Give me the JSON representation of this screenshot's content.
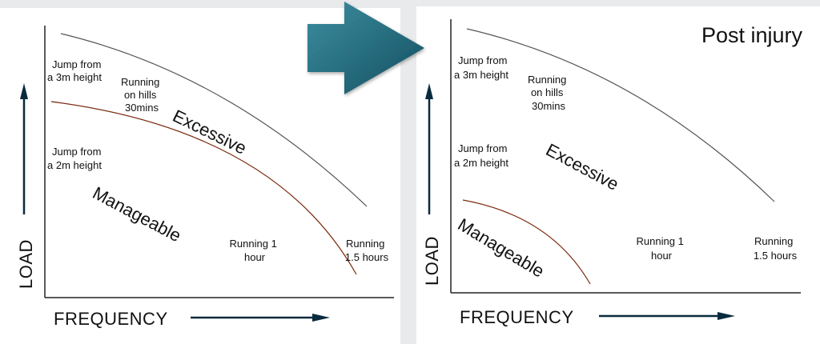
{
  "colors": {
    "upper_curve": "#555555",
    "lower_curve": "#7a2a0c",
    "axis": "#222222",
    "arrow_shape": "#1e6775",
    "arrow_head": "#0a2a3d"
  },
  "icons": {
    "transition": "right-arrow-icon",
    "axis_up": "arrow-up-icon",
    "axis_right": "arrow-right-icon"
  },
  "panels": [
    {
      "title": "",
      "y_axis_label": "LOAD",
      "x_axis_label": "FREQUENCY",
      "zone_upper": "Excessive",
      "zone_lower": "Manageable",
      "activities": {
        "jump_3m": [
          "Jump from",
          "a 3m height"
        ],
        "hills": [
          "Running",
          "on hills",
          "30mins"
        ],
        "jump_2m": [
          "Jump from",
          "a 2m height"
        ],
        "run_1h": [
          "Running 1",
          "hour"
        ],
        "run_15h": [
          "Running",
          "1.5 hours"
        ]
      }
    },
    {
      "title": "Post injury",
      "y_axis_label": "LOAD",
      "x_axis_label": "FREQUENCY",
      "zone_upper": "Excessive",
      "zone_lower": "Manageable",
      "activities": {
        "jump_3m": [
          "Jump from",
          "a 3m height"
        ],
        "hills": [
          "Running",
          "on hills",
          "30mins"
        ],
        "jump_2m": [
          "Jump from",
          "a 2m height"
        ],
        "run_1h": [
          "Running 1",
          "hour"
        ],
        "run_15h": [
          "Running",
          "1.5 hours"
        ]
      }
    }
  ]
}
